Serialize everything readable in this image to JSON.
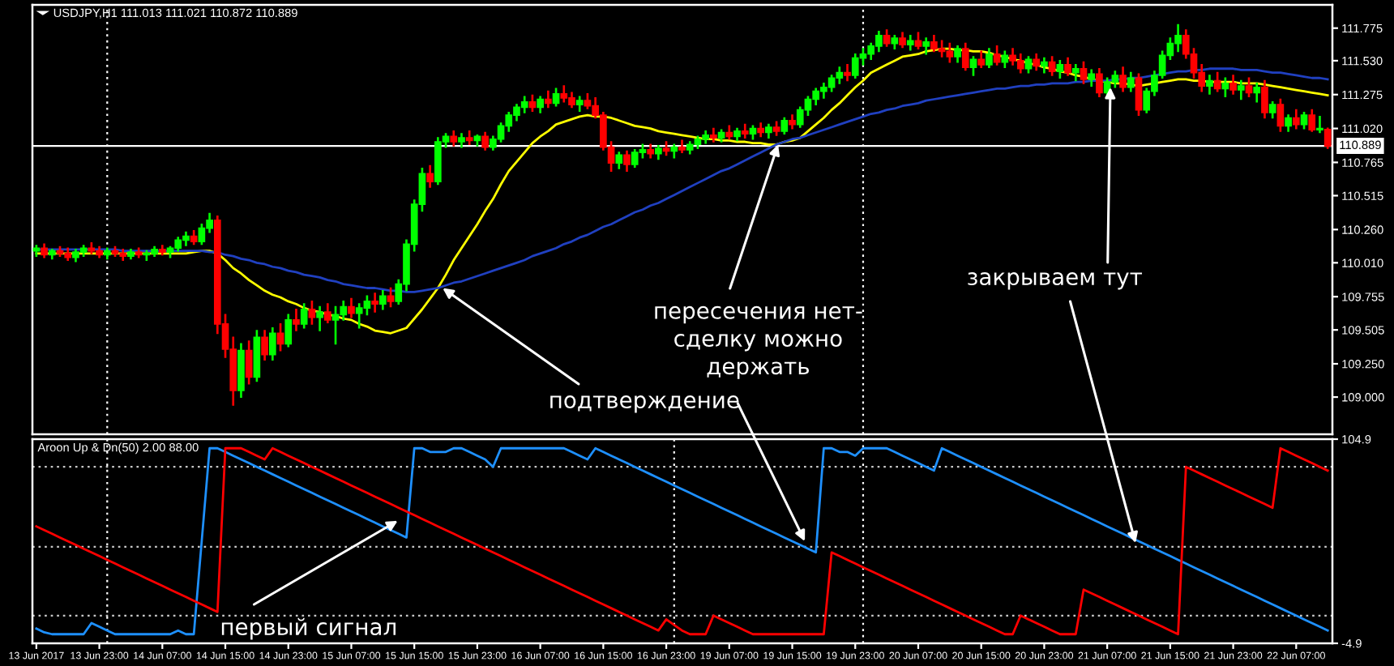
{
  "chart_data": [
    {
      "type": "candlestick",
      "title": "USDJPY,H1 111.013 111.021 110.872 110.889",
      "categories": [
        null,
        null,
        null,
        null,
        null,
        null,
        null,
        null,
        null,
        null,
        null,
        null,
        null,
        null,
        null,
        null,
        null,
        null,
        null,
        null,
        null,
        null,
        null,
        null,
        null,
        null,
        null,
        null,
        null,
        null,
        null,
        null,
        null,
        null,
        null,
        null,
        null,
        null,
        null,
        null,
        null,
        null,
        null,
        null,
        null,
        null,
        null,
        null,
        null,
        null,
        null,
        null,
        null,
        null,
        null,
        null,
        null,
        null,
        null,
        null,
        null,
        null,
        null,
        null,
        null,
        null,
        null,
        null,
        null,
        null,
        null,
        null,
        null,
        null,
        null,
        null,
        null,
        null,
        null,
        null,
        null,
        null,
        null,
        null,
        null,
        null,
        null,
        null,
        null,
        null,
        null,
        null,
        null,
        null,
        null,
        null,
        null,
        null,
        null,
        null,
        null,
        null,
        null,
        null,
        null,
        null,
        null,
        null,
        null,
        null,
        null,
        null,
        null,
        null,
        null,
        null,
        null,
        null,
        null,
        null,
        null,
        null,
        null,
        null,
        null,
        null,
        null,
        null,
        null,
        null,
        null,
        null,
        null,
        null,
        null,
        null,
        null,
        null,
        null,
        null,
        null,
        null,
        null,
        null,
        null,
        null,
        null,
        null,
        null,
        null,
        null,
        null,
        null,
        null,
        null,
        null,
        null,
        null,
        null,
        null,
        null,
        null,
        null,
        null,
        null
      ],
      "ohlc": [
        [
          110.1,
          110.14,
          110.06,
          110.12
        ],
        [
          110.12,
          110.15,
          110.05,
          110.07
        ],
        [
          110.07,
          110.11,
          110.04,
          110.1
        ],
        [
          110.1,
          110.13,
          110.06,
          110.08
        ],
        [
          110.08,
          110.12,
          110.03,
          110.05
        ],
        [
          110.05,
          110.11,
          110.02,
          110.09
        ],
        [
          110.09,
          110.14,
          110.06,
          110.12
        ],
        [
          110.12,
          110.16,
          110.08,
          110.1
        ],
        [
          110.1,
          110.13,
          110.05,
          110.07
        ],
        [
          110.07,
          110.12,
          110.04,
          110.1
        ],
        [
          110.1,
          110.13,
          110.06,
          110.08
        ],
        [
          110.08,
          110.11,
          110.03,
          110.06
        ],
        [
          110.06,
          110.11,
          110.04,
          110.09
        ],
        [
          110.09,
          110.12,
          110.05,
          110.07
        ],
        [
          110.07,
          110.1,
          110.03,
          110.08
        ],
        [
          110.08,
          110.13,
          110.06,
          110.11
        ],
        [
          110.11,
          110.14,
          110.07,
          110.09
        ],
        [
          110.09,
          110.13,
          110.05,
          110.12
        ],
        [
          110.12,
          110.2,
          110.1,
          110.18
        ],
        [
          110.18,
          110.24,
          110.14,
          110.21
        ],
        [
          110.21,
          110.25,
          110.15,
          110.17
        ],
        [
          110.17,
          110.3,
          110.15,
          110.27
        ],
        [
          110.27,
          110.38,
          110.24,
          110.33
        ],
        [
          110.33,
          110.36,
          109.48,
          109.55
        ],
        [
          109.55,
          109.62,
          109.3,
          109.36
        ],
        [
          109.36,
          109.45,
          108.94,
          109.05
        ],
        [
          109.05,
          109.4,
          109.0,
          109.35
        ],
        [
          109.35,
          109.42,
          109.1,
          109.15
        ],
        [
          109.15,
          109.5,
          109.12,
          109.45
        ],
        [
          109.45,
          109.5,
          109.28,
          109.32
        ],
        [
          109.32,
          109.52,
          109.28,
          109.48
        ],
        [
          109.48,
          109.55,
          109.35,
          109.4
        ],
        [
          109.4,
          109.62,
          109.38,
          109.58
        ],
        [
          109.58,
          109.66,
          109.5,
          109.55
        ],
        [
          109.55,
          109.7,
          109.52,
          109.66
        ],
        [
          109.66,
          109.72,
          109.55,
          109.6
        ],
        [
          109.6,
          109.68,
          109.5,
          109.64
        ],
        [
          109.64,
          109.7,
          109.56,
          109.58
        ],
        [
          109.58,
          109.68,
          109.4,
          109.62
        ],
        [
          109.62,
          109.72,
          109.58,
          109.68
        ],
        [
          109.68,
          109.74,
          109.6,
          109.63
        ],
        [
          109.63,
          109.7,
          109.52,
          109.67
        ],
        [
          109.67,
          109.76,
          109.62,
          109.72
        ],
        [
          109.72,
          109.78,
          109.64,
          109.7
        ],
        [
          109.7,
          109.8,
          109.66,
          109.76
        ],
        [
          109.76,
          109.82,
          109.68,
          109.72
        ],
        [
          109.72,
          109.88,
          109.7,
          109.85
        ],
        [
          109.85,
          110.18,
          109.8,
          110.15
        ],
        [
          110.15,
          110.48,
          110.1,
          110.45
        ],
        [
          110.45,
          110.72,
          110.4,
          110.68
        ],
        [
          110.68,
          110.74,
          110.58,
          110.62
        ],
        [
          110.62,
          110.95,
          110.6,
          110.92
        ],
        [
          110.92,
          110.98,
          110.88,
          110.96
        ],
        [
          110.96,
          111.0,
          110.89,
          110.92
        ],
        [
          110.92,
          110.98,
          110.88,
          110.95
        ],
        [
          110.95,
          111.0,
          110.9,
          110.93
        ],
        [
          110.93,
          110.97,
          110.89,
          110.96
        ],
        [
          110.96,
          110.99,
          110.86,
          110.88
        ],
        [
          110.88,
          110.96,
          110.86,
          110.94
        ],
        [
          110.94,
          111.06,
          110.92,
          111.04
        ],
        [
          111.04,
          111.14,
          111.0,
          111.12
        ],
        [
          111.12,
          111.2,
          111.08,
          111.18
        ],
        [
          111.18,
          111.26,
          111.14,
          111.22
        ],
        [
          111.22,
          111.27,
          111.15,
          111.18
        ],
        [
          111.18,
          111.26,
          111.14,
          111.24
        ],
        [
          111.24,
          111.3,
          111.18,
          111.21
        ],
        [
          111.21,
          111.32,
          111.19,
          111.28
        ],
        [
          111.28,
          111.34,
          111.22,
          111.25
        ],
        [
          111.25,
          111.29,
          111.18,
          111.2
        ],
        [
          111.2,
          111.26,
          111.15,
          111.23
        ],
        [
          111.23,
          111.28,
          111.17,
          111.19
        ],
        [
          111.19,
          111.25,
          111.1,
          111.12
        ],
        [
          111.12,
          111.14,
          110.86,
          110.88
        ],
        [
          110.88,
          110.92,
          110.7,
          110.76
        ],
        [
          110.76,
          110.84,
          110.72,
          110.82
        ],
        [
          110.82,
          110.85,
          110.7,
          110.75
        ],
        [
          110.75,
          110.86,
          110.73,
          110.84
        ],
        [
          110.84,
          110.9,
          110.8,
          110.86
        ],
        [
          110.86,
          110.9,
          110.8,
          110.83
        ],
        [
          110.83,
          110.89,
          110.79,
          110.87
        ],
        [
          110.87,
          110.92,
          110.82,
          110.85
        ],
        [
          110.85,
          110.9,
          110.8,
          110.88
        ],
        [
          110.88,
          110.93,
          110.84,
          110.86
        ],
        [
          110.86,
          110.92,
          110.83,
          110.9
        ],
        [
          110.9,
          110.96,
          110.87,
          110.94
        ],
        [
          110.94,
          111.0,
          110.91,
          110.97
        ],
        [
          110.97,
          111.02,
          110.92,
          110.95
        ],
        [
          110.95,
          111.01,
          110.92,
          110.99
        ],
        [
          110.99,
          111.04,
          110.94,
          110.96
        ],
        [
          110.96,
          111.02,
          110.93,
          111.0
        ],
        [
          111.0,
          111.05,
          110.95,
          110.98
        ],
        [
          110.98,
          111.04,
          110.94,
          111.02
        ],
        [
          111.02,
          111.06,
          110.96,
          110.99
        ],
        [
          110.99,
          111.05,
          110.95,
          111.03
        ],
        [
          111.03,
          111.07,
          110.97,
          111.0
        ],
        [
          111.0,
          111.1,
          110.98,
          111.08
        ],
        [
          111.08,
          111.12,
          111.02,
          111.05
        ],
        [
          111.05,
          111.18,
          111.03,
          111.16
        ],
        [
          111.16,
          111.26,
          111.12,
          111.24
        ],
        [
          111.24,
          111.32,
          111.2,
          111.3
        ],
        [
          111.3,
          111.36,
          111.25,
          111.33
        ],
        [
          111.33,
          111.42,
          111.3,
          111.4
        ],
        [
          111.4,
          111.48,
          111.36,
          111.44
        ],
        [
          111.44,
          111.5,
          111.38,
          111.42
        ],
        [
          111.42,
          111.58,
          111.4,
          111.55
        ],
        [
          111.55,
          111.62,
          111.5,
          111.58
        ],
        [
          111.58,
          111.66,
          111.54,
          111.64
        ],
        [
          111.64,
          111.75,
          111.6,
          111.72
        ],
        [
          111.72,
          111.76,
          111.64,
          111.66
        ],
        [
          111.66,
          111.72,
          111.62,
          111.7
        ],
        [
          111.7,
          111.74,
          111.63,
          111.65
        ],
        [
          111.65,
          111.72,
          111.61,
          111.68
        ],
        [
          111.68,
          111.74,
          111.62,
          111.64
        ],
        [
          111.64,
          111.7,
          111.58,
          111.67
        ],
        [
          111.67,
          111.72,
          111.6,
          111.62
        ],
        [
          111.62,
          111.68,
          111.56,
          111.6
        ],
        [
          111.6,
          111.66,
          111.52,
          111.56
        ],
        [
          111.56,
          111.64,
          111.52,
          111.62
        ],
        [
          111.62,
          111.66,
          111.46,
          111.48
        ],
        [
          111.48,
          111.56,
          111.42,
          111.54
        ],
        [
          111.54,
          111.6,
          111.48,
          111.5
        ],
        [
          111.5,
          111.62,
          111.48,
          111.58
        ],
        [
          111.58,
          111.64,
          111.5,
          111.52
        ],
        [
          111.52,
          111.6,
          111.48,
          111.57
        ],
        [
          111.57,
          111.62,
          111.5,
          111.53
        ],
        [
          111.53,
          111.58,
          111.44,
          111.47
        ],
        [
          111.47,
          111.56,
          111.44,
          111.54
        ],
        [
          111.54,
          111.58,
          111.46,
          111.49
        ],
        [
          111.49,
          111.55,
          111.44,
          111.52
        ],
        [
          111.52,
          111.56,
          111.42,
          111.45
        ],
        [
          111.45,
          111.53,
          111.4,
          111.5
        ],
        [
          111.5,
          111.55,
          111.42,
          111.44
        ],
        [
          111.44,
          111.5,
          111.38,
          111.47
        ],
        [
          111.47,
          111.52,
          111.36,
          111.39
        ],
        [
          111.39,
          111.46,
          111.34,
          111.43
        ],
        [
          111.43,
          111.47,
          111.26,
          111.29
        ],
        [
          111.29,
          111.4,
          111.26,
          111.37
        ],
        [
          111.37,
          111.45,
          111.33,
          111.42
        ],
        [
          111.42,
          111.48,
          111.3,
          111.33
        ],
        [
          111.33,
          111.44,
          111.3,
          111.4
        ],
        [
          111.4,
          111.43,
          111.12,
          111.16
        ],
        [
          111.16,
          111.32,
          111.14,
          111.3
        ],
        [
          111.3,
          111.45,
          111.27,
          111.42
        ],
        [
          111.42,
          111.6,
          111.4,
          111.57
        ],
        [
          111.57,
          111.7,
          111.54,
          111.66
        ],
        [
          111.66,
          111.8,
          111.6,
          111.72
        ],
        [
          111.72,
          111.76,
          111.55,
          111.58
        ],
        [
          111.58,
          111.62,
          111.4,
          111.44
        ],
        [
          111.44,
          111.5,
          111.3,
          111.34
        ],
        [
          111.34,
          111.42,
          111.28,
          111.38
        ],
        [
          111.38,
          111.44,
          111.3,
          111.32
        ],
        [
          111.32,
          111.4,
          111.26,
          111.36
        ],
        [
          111.36,
          111.42,
          111.28,
          111.31
        ],
        [
          111.31,
          111.38,
          111.24,
          111.34
        ],
        [
          111.34,
          111.4,
          111.26,
          111.29
        ],
        [
          111.29,
          111.36,
          111.22,
          111.33
        ],
        [
          111.33,
          111.38,
          111.1,
          111.14
        ],
        [
          111.14,
          111.22,
          111.1,
          111.2
        ],
        [
          111.2,
          111.24,
          111.0,
          111.04
        ],
        [
          111.04,
          111.12,
          111.0,
          111.1
        ],
        [
          111.1,
          111.16,
          111.02,
          111.05
        ],
        [
          111.05,
          111.14,
          111.02,
          111.12
        ],
        [
          111.12,
          111.16,
          111.0,
          111.01
        ],
        [
          111.01,
          111.11,
          110.99,
          111.02
        ],
        [
          111.013,
          111.021,
          110.872,
          110.889
        ]
      ],
      "colors": [
        "#00ff00",
        "#ff0000",
        "#00ff00",
        "#ff0000",
        "#ff0000",
        "#00ff00",
        "#00ff00",
        "#ff0000",
        "#ff0000",
        "#00ff00",
        "#ff0000",
        "#ff0000",
        "#00ff00",
        "#ff0000",
        "#00ff00",
        "#00ff00",
        "#ff0000",
        "#00ff00",
        "#00ff00",
        "#00ff00",
        "#ff0000",
        "#00ff00",
        "#00ff00",
        "#ff0000",
        "#ff0000",
        "#ff0000",
        "#00ff00",
        "#ff0000",
        "#00ff00",
        "#ff0000",
        "#00ff00",
        "#ff0000",
        "#00ff00",
        "#ff0000",
        "#00ff00",
        "#ff0000",
        "#00ff00",
        "#ff0000",
        "#00ff00",
        "#00ff00",
        "#ff0000",
        "#00ff00",
        "#00ff00",
        "#ff0000",
        "#00ff00",
        "#ff0000",
        "#00ff00",
        "#00ff00",
        "#00ff00",
        "#00ff00",
        "#ff0000",
        "#00ff00",
        "#00ff00",
        "#ff0000",
        "#00ff00",
        "#ff0000",
        "#00ff00",
        "#ff0000",
        "#00ff00",
        "#00ff00",
        "#00ff00",
        "#00ff00",
        "#00ff00",
        "#ff0000",
        "#00ff00",
        "#ff0000",
        "#00ff00",
        "#ff0000",
        "#ff0000",
        "#00ff00",
        "#ff0000",
        "#ff0000",
        "#ff0000",
        "#ff0000",
        "#00ff00",
        "#ff0000",
        "#00ff00",
        "#00ff00",
        "#ff0000",
        "#00ff00",
        "#ff0000",
        "#00ff00",
        "#ff0000",
        "#00ff00",
        "#00ff00",
        "#00ff00",
        "#ff0000",
        "#00ff00",
        "#ff0000",
        "#00ff00",
        "#ff0000",
        "#00ff00",
        "#ff0000",
        "#00ff00",
        "#ff0000",
        "#00ff00",
        "#ff0000",
        "#00ff00",
        "#00ff00",
        "#00ff00",
        "#00ff00",
        "#00ff00",
        "#00ff00",
        "#ff0000",
        "#00ff00",
        "#00ff00",
        "#00ff00",
        "#00ff00",
        "#ff0000",
        "#00ff00",
        "#ff0000",
        "#00ff00",
        "#ff0000",
        "#00ff00",
        "#ff0000",
        "#ff0000",
        "#ff0000",
        "#00ff00",
        "#ff0000",
        "#00ff00",
        "#ff0000",
        "#00ff00",
        "#ff0000",
        "#00ff00",
        "#ff0000",
        "#ff0000",
        "#00ff00",
        "#ff0000",
        "#00ff00",
        "#ff0000",
        "#00ff00",
        "#ff0000",
        "#00ff00",
        "#ff0000",
        "#00ff00",
        "#ff0000",
        "#00ff00",
        "#00ff00",
        "#ff0000",
        "#00ff00",
        "#ff0000",
        "#00ff00",
        "#00ff00",
        "#00ff00",
        "#00ff00",
        "#00ff00",
        "#ff0000",
        "#ff0000",
        "#ff0000",
        "#00ff00",
        "#ff0000",
        "#00ff00",
        "#ff0000",
        "#00ff00",
        "#ff0000",
        "#00ff00",
        "#ff0000",
        "#00ff00",
        "#ff0000",
        "#00ff00",
        "#ff0000",
        "#00ff00",
        "#ff0000",
        "#00ff00",
        "#ff0000"
      ],
      "series": [
        {
          "type": "line",
          "color": "#ffff00",
          "values": [
            110.08,
            110.08,
            110.08,
            110.08,
            110.08,
            110.08,
            110.08,
            110.08,
            110.08,
            110.08,
            110.08,
            110.08,
            110.08,
            110.08,
            110.08,
            110.08,
            110.08,
            110.08,
            110.08,
            110.08,
            110.09,
            110.1,
            110.1,
            110.08,
            110.03,
            109.97,
            109.93,
            109.88,
            109.84,
            109.8,
            109.77,
            109.75,
            109.72,
            109.7,
            109.67,
            109.65,
            109.64,
            109.62,
            109.61,
            109.59,
            109.58,
            109.55,
            109.53,
            109.5,
            109.49,
            109.48,
            109.5,
            109.52,
            109.59,
            109.66,
            109.74,
            109.82,
            109.92,
            110.03,
            110.12,
            110.21,
            110.3,
            110.4,
            110.49,
            110.6,
            110.7,
            110.77,
            110.84,
            110.91,
            110.96,
            111.0,
            111.05,
            111.07,
            111.09,
            111.11,
            111.12,
            111.11,
            111.11,
            111.1,
            111.08,
            111.06,
            111.04,
            111.03,
            111.02,
            111.0,
            110.99,
            110.98,
            110.97,
            110.96,
            110.95,
            110.94,
            110.94,
            110.93,
            110.93,
            110.92,
            110.92,
            110.91,
            110.91,
            110.9,
            110.9,
            110.92,
            110.93,
            110.95,
            111.0,
            111.05,
            111.1,
            111.16,
            111.21,
            111.27,
            111.33,
            111.38,
            111.44,
            111.47,
            111.5,
            111.53,
            111.56,
            111.57,
            111.58,
            111.6,
            111.61,
            111.62,
            111.62,
            111.61,
            111.61,
            111.6,
            111.6,
            111.59,
            111.57,
            111.56,
            111.54,
            111.53,
            111.51,
            111.5,
            111.48,
            111.47,
            111.45,
            111.44,
            111.42,
            111.41,
            111.39,
            111.38,
            111.37,
            111.36,
            111.36,
            111.35,
            111.34,
            111.35,
            111.36,
            111.37,
            111.38,
            111.39,
            111.39,
            111.38,
            111.38,
            111.37,
            111.37,
            111.37,
            111.37,
            111.36,
            111.36,
            111.36,
            111.35,
            111.34,
            111.33,
            111.32,
            111.31,
            111.3,
            111.29,
            111.28,
            111.27
          ]
        },
        {
          "type": "line",
          "color": "#2040c0",
          "values": [
            110.11,
            110.11,
            110.11,
            110.11,
            110.11,
            110.11,
            110.11,
            110.11,
            110.11,
            110.11,
            110.11,
            110.1,
            110.1,
            110.1,
            110.1,
            110.1,
            110.1,
            110.1,
            110.1,
            110.1,
            110.1,
            110.1,
            110.09,
            110.09,
            110.07,
            110.06,
            110.04,
            110.03,
            110.01,
            110.0,
            109.98,
            109.97,
            109.95,
            109.94,
            109.92,
            109.91,
            109.9,
            109.88,
            109.87,
            109.85,
            109.84,
            109.83,
            109.82,
            109.82,
            109.81,
            109.8,
            109.8,
            109.79,
            109.79,
            109.8,
            109.81,
            109.82,
            109.84,
            109.86,
            109.87,
            109.89,
            109.91,
            109.93,
            109.95,
            109.97,
            109.99,
            110.01,
            110.03,
            110.06,
            110.08,
            110.1,
            110.12,
            110.15,
            110.17,
            110.2,
            110.22,
            110.25,
            110.28,
            110.3,
            110.33,
            110.36,
            110.39,
            110.41,
            110.44,
            110.46,
            110.49,
            110.52,
            110.55,
            110.58,
            110.61,
            110.64,
            110.67,
            110.7,
            110.72,
            110.75,
            110.78,
            110.81,
            110.84,
            110.87,
            110.9,
            110.92,
            110.94,
            110.95,
            110.97,
            110.99,
            111.01,
            111.03,
            111.05,
            111.07,
            111.09,
            111.11,
            111.13,
            111.14,
            111.16,
            111.17,
            111.19,
            111.2,
            111.21,
            111.23,
            111.24,
            111.25,
            111.26,
            111.27,
            111.28,
            111.29,
            111.3,
            111.31,
            111.32,
            111.32,
            111.33,
            111.34,
            111.34,
            111.35,
            111.35,
            111.36,
            111.36,
            111.36,
            111.37,
            111.37,
            111.38,
            111.38,
            111.38,
            111.39,
            111.39,
            111.4,
            111.4,
            111.41,
            111.42,
            111.43,
            111.44,
            111.45,
            111.45,
            111.46,
            111.46,
            111.47,
            111.47,
            111.47,
            111.47,
            111.46,
            111.46,
            111.46,
            111.45,
            111.44,
            111.44,
            111.43,
            111.42,
            111.41,
            111.4,
            111.4,
            111.39
          ]
        }
      ],
      "ylim": [
        108.72,
        111.95
      ],
      "yticks": [
        111.775,
        {
          "value": 111.53,
          "label": "111.530"
        },
        111.275,
        {
          "value": 111.02,
          "label": "111.020"
        },
        110.765,
        110.515,
        {
          "value": 110.26,
          "label": "110.260"
        },
        {
          "value": 110.01,
          "label": "110.010"
        },
        109.755,
        109.505,
        {
          "value": 109.25,
          "label": "109.250"
        },
        {
          "value": 109.0,
          "label": "109.000"
        }
      ],
      "ref_lines": [
        {
          "axis": "y",
          "value": 110.889,
          "label": "110.889",
          "color": "#ffffff",
          "line_style": "solid"
        }
      ],
      "annotations": [
        "подтверждение",
        "пересечения нет-\nсделку можно\nдержать",
        "закрываем тут"
      ]
    },
    {
      "type": "line",
      "title": "Aroon Up & Dn(50) 2.00 88.00",
      "categories": [
        "13 Jun 2017",
        null,
        null,
        null,
        null,
        null,
        null,
        null,
        "13 Jun 23:00",
        null,
        null,
        null,
        null,
        null,
        null,
        null,
        "14 Jun 07:00",
        null,
        null,
        null,
        null,
        null,
        null,
        null,
        "14 Jun 15:00",
        null,
        null,
        null,
        null,
        null,
        null,
        null,
        "14 Jun 23:00",
        null,
        null,
        null,
        null,
        null,
        null,
        null,
        "15 Jun 07:00",
        null,
        null,
        null,
        null,
        null,
        null,
        null,
        "15 Jun 15:00",
        null,
        null,
        null,
        null,
        null,
        null,
        null,
        "15 Jun 23:00",
        null,
        null,
        null,
        null,
        null,
        null,
        null,
        "16 Jun 07:00",
        null,
        null,
        null,
        null,
        null,
        null,
        null,
        "16 Jun 15:00",
        null,
        null,
        null,
        null,
        null,
        null,
        null,
        "16 Jun 23:00",
        null,
        null,
        null,
        null,
        null,
        null,
        null,
        "19 Jun 07:00",
        null,
        null,
        null,
        null,
        null,
        null,
        null,
        "19 Jun 15:00",
        null,
        null,
        null,
        null,
        null,
        null,
        null,
        "19 Jun 23:00",
        null,
        null,
        null,
        null,
        null,
        null,
        null,
        "20 Jun 07:00",
        null,
        null,
        null,
        null,
        null,
        null,
        null,
        "20 Jun 15:00",
        null,
        null,
        null,
        null,
        null,
        null,
        null,
        "20 Jun 23:00",
        null,
        null,
        null,
        null,
        null,
        null,
        null,
        "21 Jun 07:00",
        null,
        null,
        null,
        null,
        null,
        null,
        null,
        "21 Jun 15:00",
        null,
        null,
        null,
        null,
        null,
        null,
        null,
        "21 Jun 23:00",
        null,
        null,
        null,
        null,
        null,
        null,
        null,
        "22 Jun 07:00",
        null,
        null,
        null,
        null
      ],
      "series": [
        {
          "color": "#1e90ff",
          "values": [
            3,
            1,
            0,
            0,
            0,
            0,
            0,
            6,
            4,
            2,
            0,
            0,
            0,
            0,
            0,
            0,
            0,
            0,
            2,
            0,
            0,
            50,
            100,
            100,
            98,
            96,
            94,
            92,
            90,
            88,
            86,
            84,
            82,
            80,
            78,
            76,
            74,
            72,
            70,
            68,
            66,
            64,
            62,
            60,
            58,
            56,
            54,
            52,
            100,
            100,
            98,
            98,
            98,
            100,
            100,
            98,
            96,
            94,
            90,
            100,
            100,
            100,
            100,
            100,
            100,
            100,
            100,
            100,
            98,
            96,
            94,
            100,
            98,
            96,
            94,
            92,
            90,
            88,
            86,
            84,
            82,
            80,
            78,
            76,
            74,
            72,
            70,
            68,
            66,
            64,
            62,
            60,
            58,
            56,
            54,
            52,
            50,
            48,
            46,
            44,
            100,
            100,
            98,
            98,
            96,
            100,
            100,
            100,
            100,
            98,
            96,
            94,
            92,
            90,
            88,
            100,
            98,
            96,
            94,
            92,
            90,
            88,
            86,
            84,
            82,
            80,
            78,
            76,
            74,
            72,
            70,
            68,
            66,
            64,
            62,
            60,
            58,
            56,
            54,
            52,
            50,
            48,
            46,
            44,
            42,
            40,
            38,
            36,
            34,
            32,
            30,
            28,
            26,
            24,
            22,
            20,
            18,
            16,
            14,
            12,
            10,
            8,
            6,
            4,
            2
          ]
        },
        {
          "color": "#ff0000",
          "values": [
            58,
            56,
            54,
            52,
            50,
            48,
            46,
            44,
            42,
            40,
            38,
            36,
            34,
            32,
            30,
            28,
            26,
            24,
            22,
            20,
            18,
            16,
            14,
            12,
            100,
            100,
            100,
            98,
            96,
            94,
            100,
            98,
            96,
            94,
            92,
            90,
            88,
            86,
            84,
            82,
            80,
            78,
            76,
            74,
            72,
            70,
            68,
            66,
            64,
            62,
            60,
            58,
            56,
            54,
            52,
            50,
            48,
            46,
            44,
            42,
            40,
            38,
            36,
            34,
            32,
            30,
            28,
            26,
            24,
            22,
            20,
            18,
            16,
            14,
            12,
            10,
            8,
            6,
            4,
            2,
            8,
            5,
            2,
            0,
            0,
            0,
            10,
            8,
            6,
            4,
            2,
            0,
            0,
            0,
            0,
            0,
            0,
            0,
            0,
            0,
            0,
            44,
            42,
            40,
            38,
            36,
            34,
            32,
            30,
            28,
            26,
            24,
            22,
            20,
            18,
            16,
            14,
            12,
            10,
            8,
            6,
            4,
            2,
            0,
            0,
            10,
            8,
            6,
            4,
            2,
            0,
            0,
            0,
            24,
            22,
            20,
            18,
            16,
            14,
            12,
            10,
            8,
            6,
            4,
            2,
            0,
            90,
            88,
            86,
            84,
            82,
            80,
            78,
            76,
            74,
            72,
            70,
            68,
            100,
            98,
            96,
            94,
            92,
            90,
            88
          ]
        }
      ],
      "ylim": [
        -4.9,
        104.9
      ],
      "yticks": [
        104.9,
        -4.9
      ],
      "ref_lines": [
        {
          "axis": "y",
          "value": 90,
          "color": "#c8c8c8",
          "line_style": "dotted"
        },
        {
          "axis": "y",
          "value": 47,
          "color": "#c8c8c8",
          "line_style": "dotted"
        },
        {
          "axis": "y",
          "value": 10,
          "color": "#c8c8c8",
          "line_style": "dotted"
        }
      ],
      "annotations": [
        "первый сигнал"
      ]
    }
  ]
}
